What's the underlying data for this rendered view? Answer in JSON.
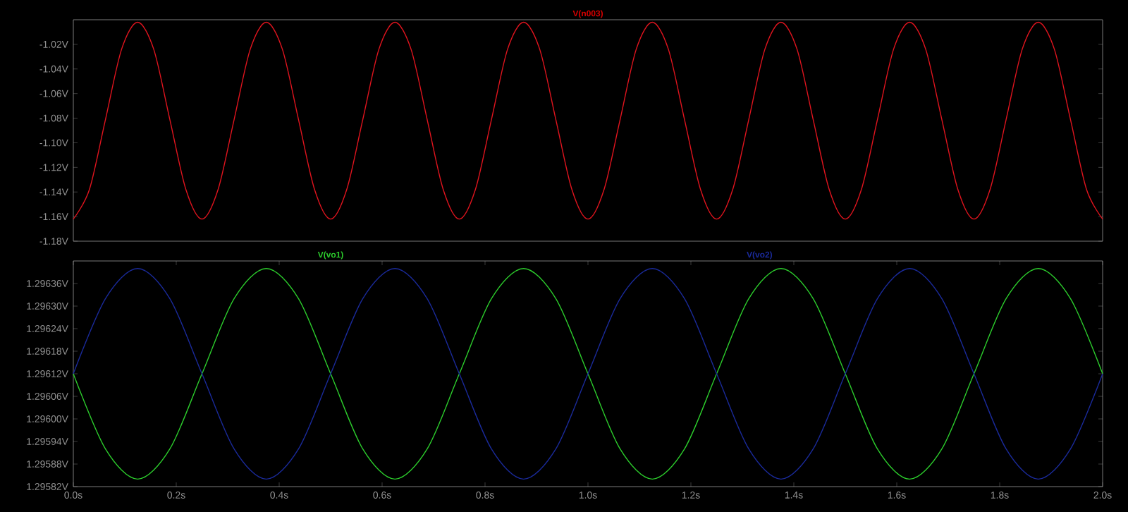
{
  "chart_data": [
    {
      "type": "line",
      "title": "V(n003)",
      "x": [
        0,
        0.03125,
        0.0625,
        0.09375,
        0.125,
        0.15625,
        0.1875,
        0.21875,
        0.25,
        0.28125,
        0.3125,
        0.34375,
        0.375,
        0.40625,
        0.4375,
        0.46875,
        0.5,
        0.53125,
        0.5625,
        0.59375,
        0.625,
        0.65625,
        0.6875,
        0.71875,
        0.75,
        0.78125,
        0.8125,
        0.84375,
        0.875,
        0.90625,
        0.9375,
        0.96875,
        1,
        1.03125,
        1.0625,
        1.09375,
        1.125,
        1.15625,
        1.1875,
        1.21875,
        1.25,
        1.28125,
        1.3125,
        1.34375,
        1.375,
        1.40625,
        1.4375,
        1.46875,
        1.5,
        1.53125,
        1.5625,
        1.59375,
        1.625,
        1.65625,
        1.6875,
        1.71875,
        1.75,
        1.78125,
        1.8125,
        1.84375,
        1.875,
        1.90625,
        1.9375,
        1.96875,
        2
      ],
      "series": [
        {
          "color": "#e0141e",
          "values": [
            -1.162,
            -1.138,
            -1.081,
            -1.024,
            -1.002,
            -1.024,
            -1.081,
            -1.138,
            -1.162,
            -1.138,
            -1.081,
            -1.024,
            -1.002,
            -1.024,
            -1.081,
            -1.138,
            -1.162,
            -1.138,
            -1.081,
            -1.024,
            -1.002,
            -1.024,
            -1.081,
            -1.138,
            -1.162,
            -1.138,
            -1.081,
            -1.024,
            -1.002,
            -1.024,
            -1.081,
            -1.138,
            -1.162,
            -1.138,
            -1.081,
            -1.024,
            -1.002,
            -1.024,
            -1.081,
            -1.138,
            -1.162,
            -1.138,
            -1.081,
            -1.024,
            -1.002,
            -1.024,
            -1.081,
            -1.138,
            -1.162,
            -1.138,
            -1.081,
            -1.024,
            -1.002,
            -1.024,
            -1.081,
            -1.138,
            -1.162,
            -1.138,
            -1.081,
            -1.024,
            -1.002,
            -1.024,
            -1.081,
            -1.138,
            -1.162
          ]
        }
      ],
      "xlim": [
        0,
        2
      ],
      "ylim": [
        -1.18,
        -1.0
      ],
      "yticks": [
        {
          "value": -1.02,
          "label": "-1.02V"
        },
        {
          "value": -1.04,
          "label": "-1.04V"
        },
        {
          "value": -1.06,
          "label": "-1.06V"
        },
        {
          "value": -1.08,
          "label": "-1.08V"
        },
        {
          "value": -1.1,
          "label": "-1.10V"
        },
        {
          "value": -1.12,
          "label": "-1.12V"
        },
        {
          "value": -1.14,
          "label": "-1.14V"
        },
        {
          "value": -1.16,
          "label": "-1.16V"
        },
        {
          "value": -1.18,
          "label": "-1.18V"
        }
      ],
      "tick_labels": "y"
    },
    {
      "type": "line",
      "x": [
        0,
        0.0625,
        0.125,
        0.1875,
        0.25,
        0.3125,
        0.375,
        0.4375,
        0.5,
        0.5625,
        0.625,
        0.6875,
        0.75,
        0.8125,
        0.875,
        0.9375,
        1,
        1.0625,
        1.125,
        1.1875,
        1.25,
        1.3125,
        1.375,
        1.4375,
        1.5,
        1.5625,
        1.625,
        1.6875,
        1.75,
        1.8125,
        1.875,
        1.9375,
        2
      ],
      "series": [
        {
          "name": "V(vo1)",
          "color": "#2ccc2c",
          "values": [
            1.29612,
            1.29592,
            1.29584,
            1.29592,
            1.29612,
            1.29632,
            1.2964,
            1.29632,
            1.29612,
            1.29592,
            1.29584,
            1.29592,
            1.29612,
            1.29632,
            1.2964,
            1.29632,
            1.29612,
            1.29592,
            1.29584,
            1.29592,
            1.29612,
            1.29632,
            1.2964,
            1.29632,
            1.29612,
            1.29592,
            1.29584,
            1.29592,
            1.29612,
            1.29632,
            1.2964,
            1.29632,
            1.29612
          ]
        },
        {
          "name": "V(vo2)",
          "color": "#1a2a9a",
          "values": [
            1.29612,
            1.29632,
            1.2964,
            1.29632,
            1.29612,
            1.29592,
            1.29584,
            1.29592,
            1.29612,
            1.29632,
            1.2964,
            1.29632,
            1.29612,
            1.29592,
            1.29584,
            1.29592,
            1.29612,
            1.29632,
            1.2964,
            1.29632,
            1.29612,
            1.29592,
            1.29584,
            1.29592,
            1.29612,
            1.29632,
            1.2964,
            1.29632,
            1.29612,
            1.29592,
            1.29584,
            1.29592,
            1.29612
          ]
        }
      ],
      "xlim": [
        0,
        2
      ],
      "ylim": [
        1.29582,
        1.29642
      ],
      "xticks": [
        {
          "value": 0,
          "label": "0.0s"
        },
        {
          "value": 0.2,
          "label": "0.2s"
        },
        {
          "value": 0.4,
          "label": "0.4s"
        },
        {
          "value": 0.6,
          "label": "0.6s"
        },
        {
          "value": 0.8,
          "label": "0.8s"
        },
        {
          "value": 1.0,
          "label": "1.0s"
        },
        {
          "value": 1.2,
          "label": "1.2s"
        },
        {
          "value": 1.4,
          "label": "1.4s"
        },
        {
          "value": 1.6,
          "label": "1.6s"
        },
        {
          "value": 1.8,
          "label": "1.8s"
        },
        {
          "value": 2.0,
          "label": "2.0s"
        }
      ],
      "yticks": [
        {
          "value": 1.29636,
          "label": "1.29636V"
        },
        {
          "value": 1.2963,
          "label": "1.29630V"
        },
        {
          "value": 1.29624,
          "label": "1.29624V"
        },
        {
          "value": 1.29618,
          "label": "1.29618V"
        },
        {
          "value": 1.29612,
          "label": "1.29612V"
        },
        {
          "value": 1.29606,
          "label": "1.29606V"
        },
        {
          "value": 1.296,
          "label": "1.29600V"
        },
        {
          "value": 1.29594,
          "label": "1.29594V"
        },
        {
          "value": 1.29588,
          "label": "1.29588V"
        },
        {
          "value": 1.29582,
          "label": "1.29582V"
        }
      ]
    }
  ]
}
